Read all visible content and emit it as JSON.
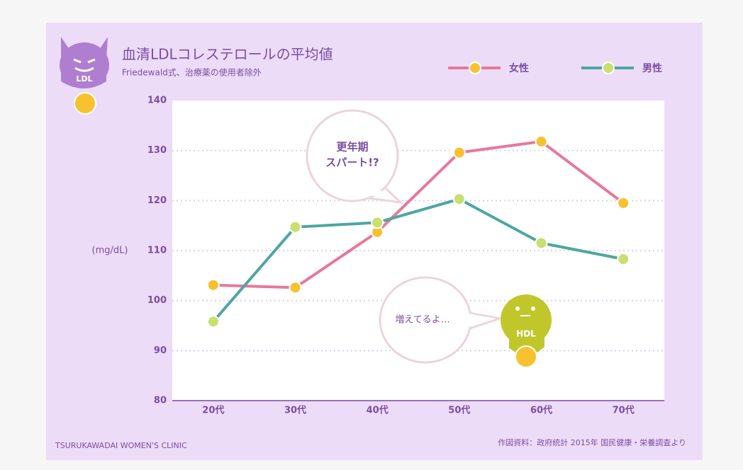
{
  "chart_data": {
    "type": "line",
    "title": "血清LDLコレステロールの平均値",
    "subtitle": "Friedewald式、治療薬の使用者除外",
    "y_label": "(mg/dL)",
    "categories": [
      "20代",
      "30代",
      "40代",
      "50代",
      "60代",
      "70代"
    ],
    "series": [
      {
        "name": "女性",
        "color": "#e8789a",
        "marker_color": "#f7c22e",
        "values": [
          103.1,
          102.6,
          113.7,
          129.6,
          131.8,
          119.5
        ]
      },
      {
        "name": "男性",
        "color": "#4ea6a2",
        "marker_color": "#c8e070",
        "values": [
          95.8,
          114.7,
          115.6,
          120.3,
          111.5,
          108.3
        ]
      }
    ],
    "ylim": [
      80,
      140
    ],
    "yticks": [
      80,
      90,
      100,
      110,
      120,
      130,
      140
    ],
    "grid": true,
    "annotations": [
      "更年期",
      "スパート!?",
      "増えてるよ…"
    ],
    "character_labels": [
      "LDL",
      "HDL"
    ],
    "credit": "TSURUKAWADAI WOMEN'S CLINIC",
    "source": "作図資料：政府統計 2015年 国民健康・栄養調査より"
  }
}
